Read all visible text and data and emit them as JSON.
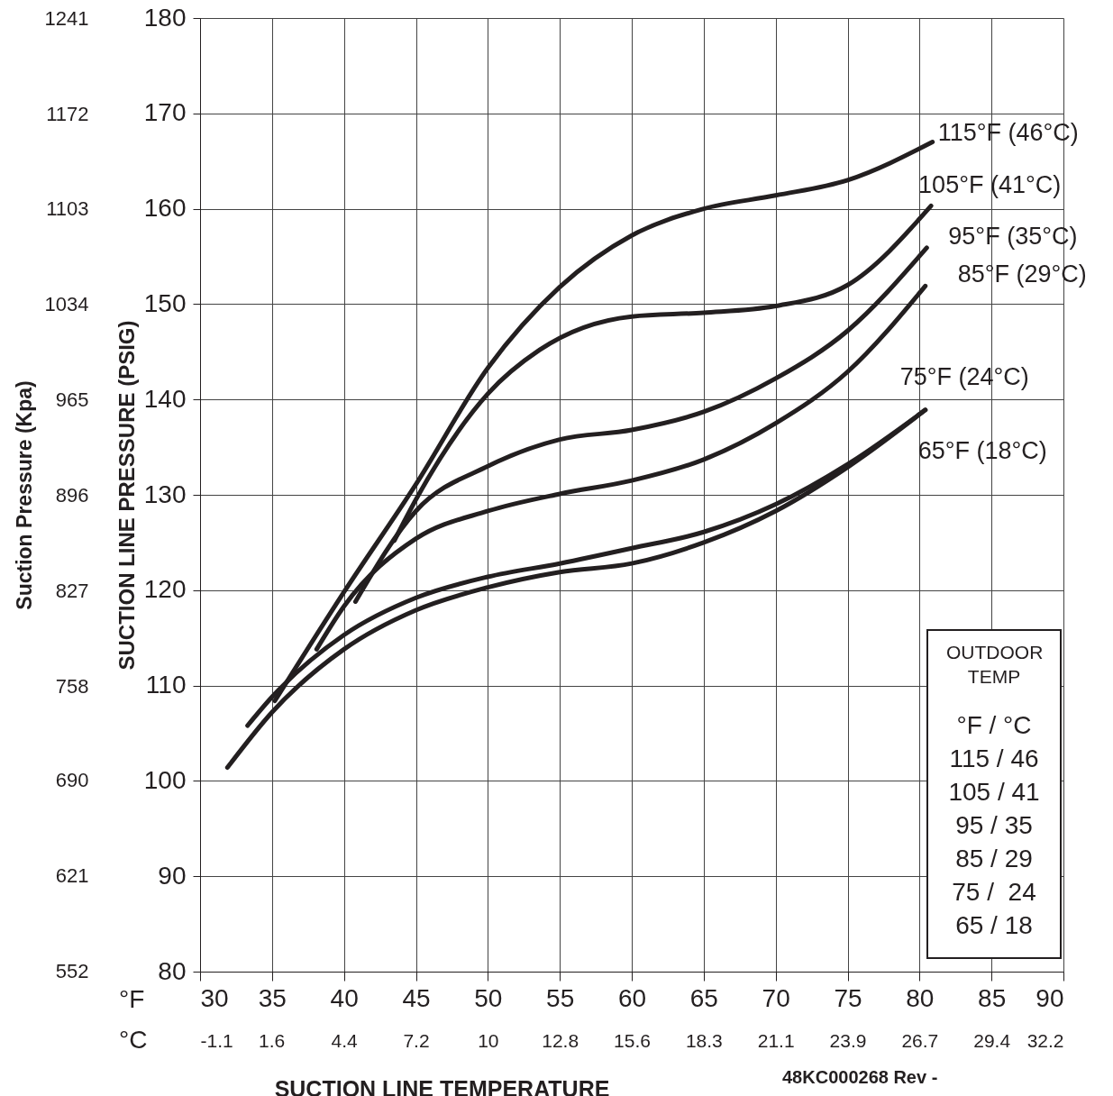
{
  "chart_data": {
    "type": "line",
    "xlabel": "SUCTION LINE TEMPERATURE",
    "ylabel": "SUCTION LINE PRESSURE (PSIG)",
    "y2label": "Suction Pressure (Kpa)",
    "xlim": [
      30,
      90
    ],
    "xticks": [
      30,
      35,
      40,
      45,
      50,
      55,
      60,
      65,
      70,
      75,
      80,
      85,
      90
    ],
    "ylim": [
      80,
      180
    ],
    "yticks": [
      80,
      90,
      100,
      110,
      120,
      130,
      140,
      150,
      160,
      170,
      180
    ],
    "y2lim": [
      551.6,
      1241.1
    ],
    "y2ticks": [
      552,
      621,
      690,
      758,
      827,
      896,
      965,
      1034,
      1103,
      1172,
      1241
    ],
    "x2lim": [
      -1.111,
      32.222
    ],
    "x2ticks": [
      {
        "value": -1.111,
        "label": "-1.1"
      },
      {
        "value": 1.64,
        "label": "1.6"
      },
      {
        "value": 4.444,
        "label": "4.4"
      },
      {
        "value": 7.222,
        "label": "7.2"
      },
      10,
      {
        "value": 12.778,
        "label": "12.8"
      },
      {
        "value": 15.556,
        "label": "15.6"
      },
      {
        "value": 18.333,
        "label": "18.3"
      },
      {
        "value": 21.111,
        "label": "21.1"
      },
      {
        "value": 23.889,
        "label": "23.9"
      },
      {
        "value": 26.667,
        "label": "26.7"
      },
      {
        "value": 29.444,
        "label": "29.4"
      },
      {
        "value": 32.222,
        "label": "32.2"
      }
    ],
    "grid": true,
    "legend": false,
    "marker": "none",
    "line_style": "solid",
    "series": [
      {
        "name": "115°F (46°C)",
        "color": "#231f20",
        "x": [
          35.2,
          40,
          45,
          50,
          55,
          60,
          65,
          70,
          75,
          80.9
        ],
        "values": [
          108.4,
          119.8,
          131.1,
          143.3,
          151.8,
          157.2,
          160.0,
          161.4,
          163.0,
          167.0
        ]
      },
      {
        "name": "105°F (41°C)",
        "color": "#231f20",
        "x": [
          43.5,
          45,
          50,
          53.6,
          60,
          65,
          70,
          75,
          80.8
        ],
        "values": [
          125.2,
          129.5,
          140.6,
          145.2,
          148.7,
          149.1,
          149.8,
          152.0,
          160.3
        ]
      },
      {
        "name": "95°F (35°C)",
        "color": "#231f20",
        "x": [
          40.8,
          45,
          50,
          55,
          60,
          65,
          70,
          75,
          80.5
        ],
        "values": [
          118.8,
          128.3,
          133.0,
          135.8,
          136.8,
          138.7,
          142.2,
          147.2,
          155.9
        ]
      },
      {
        "name": "85°F (29°C)",
        "color": "#231f20",
        "x": [
          38.1,
          40,
          45,
          50,
          55,
          60,
          65,
          70,
          75,
          80.4
        ],
        "values": [
          113.8,
          118.3,
          125.4,
          128.3,
          130.1,
          131.5,
          133.7,
          137.5,
          142.9,
          151.9
        ]
      },
      {
        "name": "75°F (24°C)",
        "color": "#231f20",
        "x": [
          33.3,
          35,
          40,
          45,
          50,
          55,
          60,
          65,
          70,
          75,
          80.4
        ],
        "values": [
          105.8,
          108.8,
          115.3,
          119.2,
          121.4,
          122.8,
          124.4,
          126.1,
          129.0,
          133.2,
          138.9
        ]
      },
      {
        "name": "65°F (18°C)",
        "color": "#231f20",
        "x": [
          31.9,
          35,
          40,
          45,
          50,
          55,
          60,
          65,
          70,
          75,
          80.4
        ],
        "values": [
          101.4,
          107.2,
          113.8,
          117.9,
          120.3,
          121.9,
          122.8,
          125.0,
          128.3,
          132.9,
          138.9
        ]
      }
    ],
    "annotations": [
      "°F",
      "°C",
      "48KC000268 Rev -",
      "OUTDOOR TEMP",
      "°F / °C",
      "115 / 46",
      "105 / 41",
      "95 / 35",
      "85 / 29",
      "75 /  24",
      "65 / 18"
    ]
  }
}
